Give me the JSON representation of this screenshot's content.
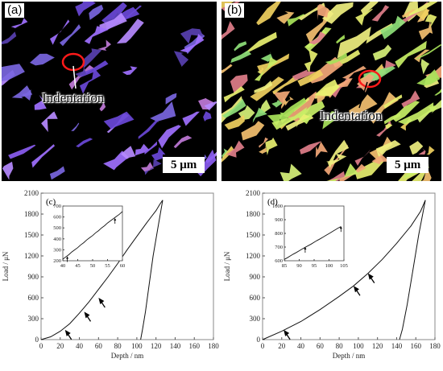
{
  "figure": {
    "panels": {
      "a": {
        "label": "(a)",
        "scale_bar": "5 μm",
        "annotation": "Indentation"
      },
      "b": {
        "label": "(b)",
        "scale_bar": "5 μm",
        "annotation": "Indentation"
      }
    }
  },
  "chart_data": [
    {
      "type": "line",
      "panel_label": "(c)",
      "xlabel": "Depth / nm",
      "ylabel": "Load / μN",
      "xlim": [
        0,
        180
      ],
      "ylim": [
        0,
        2100
      ],
      "xticks": [
        0,
        20,
        40,
        60,
        80,
        100,
        120,
        140,
        160,
        180
      ],
      "yticks": [
        0,
        300,
        600,
        900,
        1200,
        1500,
        1800,
        2100
      ],
      "series": [
        {
          "values": [
            [
              0,
              0
            ],
            [
              10,
              40
            ],
            [
              20,
              120
            ],
            [
              30,
              230
            ],
            [
              40,
              380
            ],
            [
              50,
              540
            ],
            [
              60,
              720
            ],
            [
              70,
              900
            ],
            [
              80,
              1090
            ],
            [
              90,
              1290
            ],
            [
              100,
              1480
            ],
            [
              110,
              1670
            ],
            [
              115,
              1760
            ],
            [
              120,
              1850
            ],
            [
              124,
              1940
            ],
            [
              127,
              2000
            ]
          ]
        },
        {
          "values": [
            [
              127,
              2000
            ],
            [
              122,
              1600
            ],
            [
              117,
              1200
            ],
            [
              113,
              800
            ],
            [
              109,
              400
            ],
            [
              106,
              150
            ],
            [
              104,
              0
            ]
          ]
        }
      ],
      "arrows_at": [
        [
          25,
          140
        ],
        [
          45,
          400
        ],
        [
          60,
          600
        ]
      ],
      "inset": {
        "xlim": [
          40,
          60
        ],
        "ylim": [
          200,
          700
        ],
        "xticks": [
          40,
          45,
          50,
          55,
          60
        ],
        "yticks": [
          200,
          300,
          400,
          500,
          600,
          700
        ],
        "values": [
          [
            40,
            215
          ],
          [
            41,
            235
          ],
          [
            42,
            255
          ],
          [
            43,
            280
          ],
          [
            44,
            300
          ],
          [
            45,
            320
          ],
          [
            46,
            345
          ],
          [
            47,
            365
          ],
          [
            48,
            390
          ],
          [
            49,
            410
          ],
          [
            50,
            430
          ],
          [
            51,
            455
          ],
          [
            52,
            475
          ],
          [
            53,
            500
          ],
          [
            54,
            520
          ],
          [
            55,
            545
          ],
          [
            56,
            565
          ],
          [
            57,
            585
          ],
          [
            58,
            605
          ],
          [
            59,
            625
          ],
          [
            60,
            650
          ]
        ],
        "arrows_at": [
          [
            41.5,
            240
          ],
          [
            57.5,
            590
          ]
        ]
      }
    },
    {
      "type": "line",
      "panel_label": "(d)",
      "xlabel": "Depth / nm",
      "ylabel": "Load / μN",
      "xlim": [
        0,
        180
      ],
      "ylim": [
        0,
        2100
      ],
      "xticks": [
        0,
        20,
        40,
        60,
        80,
        100,
        120,
        140,
        160,
        180
      ],
      "yticks": [
        0,
        300,
        600,
        900,
        1200,
        1500,
        1800,
        2100
      ],
      "series": [
        {
          "values": [
            [
              0,
              0
            ],
            [
              20,
              120
            ],
            [
              40,
              260
            ],
            [
              60,
              430
            ],
            [
              80,
              620
            ],
            [
              95,
              770
            ],
            [
              110,
              950
            ],
            [
              125,
              1150
            ],
            [
              140,
              1380
            ],
            [
              155,
              1630
            ],
            [
              165,
              1840
            ],
            [
              170,
              2000
            ]
          ]
        },
        {
          "values": [
            [
              170,
              2000
            ],
            [
              163,
              1500
            ],
            [
              157,
              1000
            ],
            [
              151,
              500
            ],
            [
              146,
              150
            ],
            [
              143,
              0
            ]
          ]
        }
      ],
      "arrows_at": [
        [
          22,
          140
        ],
        [
          95,
          770
        ],
        [
          110,
          950
        ]
      ],
      "inset": {
        "xlim": [
          85,
          105
        ],
        "ylim": [
          600,
          1000
        ],
        "xticks": [
          85,
          90,
          95,
          100,
          105
        ],
        "yticks": [
          600,
          700,
          800,
          900,
          1000
        ],
        "values": [
          [
            85,
            610
          ],
          [
            86,
            622
          ],
          [
            87,
            635
          ],
          [
            88,
            648
          ],
          [
            89,
            660
          ],
          [
            90,
            673
          ],
          [
            91,
            686
          ],
          [
            92,
            698
          ],
          [
            93,
            710
          ],
          [
            94,
            722
          ],
          [
            95,
            735
          ],
          [
            96,
            748
          ],
          [
            97,
            760
          ],
          [
            98,
            773
          ],
          [
            99,
            786
          ],
          [
            100,
            798
          ],
          [
            101,
            812
          ],
          [
            102,
            825
          ],
          [
            103,
            838
          ],
          [
            104,
            850
          ]
        ],
        "arrows_at": [
          [
            92,
            700
          ],
          [
            104,
            852
          ]
        ]
      }
    }
  ]
}
